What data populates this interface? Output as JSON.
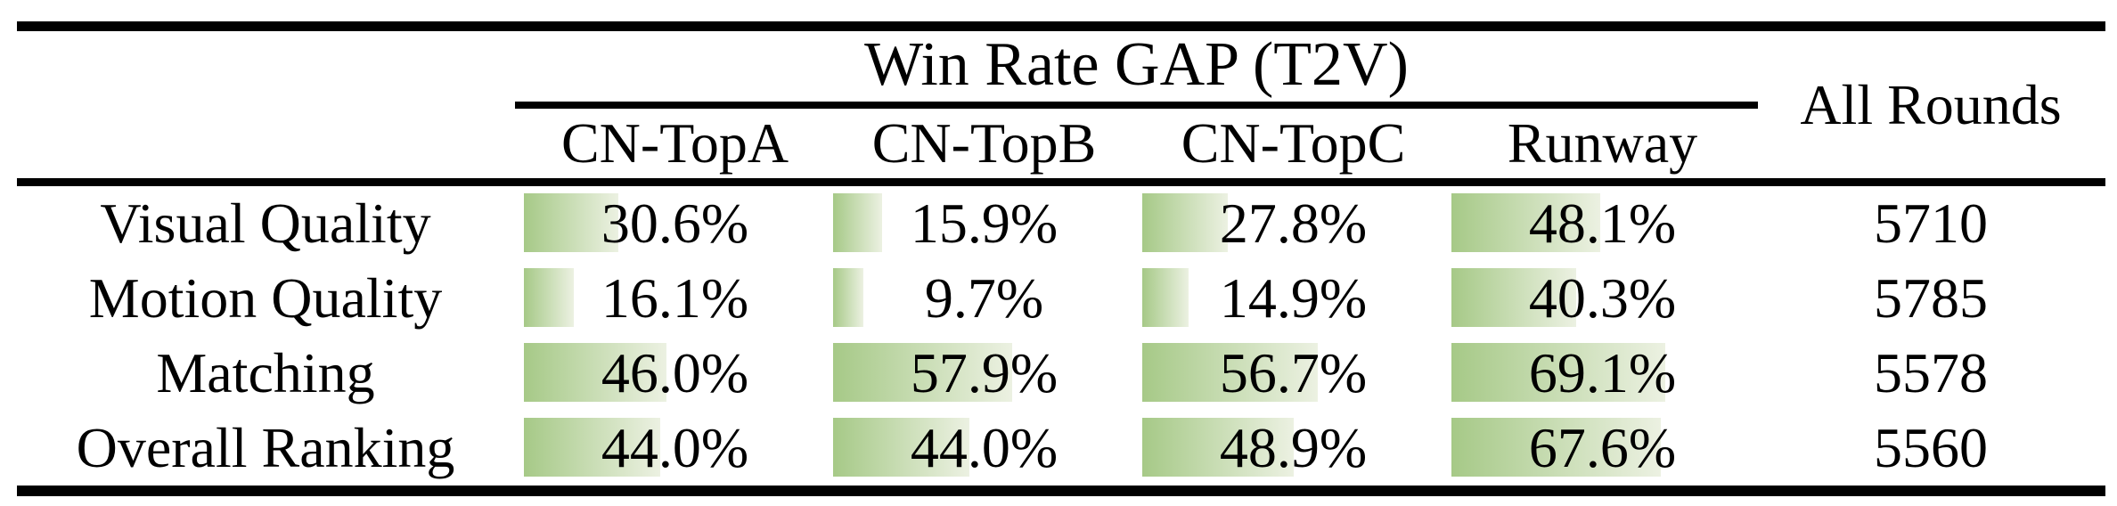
{
  "table": {
    "group_header": "Win Rate GAP (T2V)",
    "all_rounds_header": "All Rounds",
    "model_columns": [
      "CN-TopA",
      "CN-TopB",
      "CN-TopC",
      "Runway"
    ],
    "rows": [
      {
        "label": "Visual Quality",
        "cells": [
          "30.6%",
          "15.9%",
          "27.8%",
          "48.1%"
        ],
        "all_rounds": "5710"
      },
      {
        "label": "Motion Quality",
        "cells": [
          "16.1%",
          "9.7%",
          "14.9%",
          "40.3%"
        ],
        "all_rounds": "5785"
      },
      {
        "label": "Matching",
        "cells": [
          "46.0%",
          "57.9%",
          "56.7%",
          "69.1%"
        ],
        "all_rounds": "5578"
      },
      {
        "label": "Overall Ranking",
        "cells": [
          "44.0%",
          "44.0%",
          "48.9%",
          "67.6%"
        ],
        "all_rounds": "5560"
      }
    ]
  },
  "colors": {
    "rule": "#000000",
    "text": "#000000",
    "bar_gradient_start": "#a6c987",
    "bar_gradient_end": "#ecf1e2"
  },
  "chart_data": {
    "type": "table",
    "title": "Win Rate GAP (T2V)",
    "columns": [
      "CN-TopA",
      "CN-TopB",
      "CN-TopC",
      "Runway",
      "All Rounds"
    ],
    "row_labels": [
      "Visual Quality",
      "Motion Quality",
      "Matching",
      "Overall Ranking"
    ],
    "win_rate_gap_percent": {
      "Visual Quality": [
        30.6,
        15.9,
        27.8,
        48.1
      ],
      "Motion Quality": [
        16.1,
        9.7,
        14.9,
        40.3
      ],
      "Matching": [
        46.0,
        57.9,
        56.7,
        69.1
      ],
      "Overall Ranking": [
        44.0,
        44.0,
        48.9,
        67.6
      ]
    },
    "all_rounds": [
      5710,
      5785,
      5578,
      5560
    ],
    "layout_hint": "in-cell horizontal bars, green gradient, width proportional to percent (100% = cell width)"
  }
}
